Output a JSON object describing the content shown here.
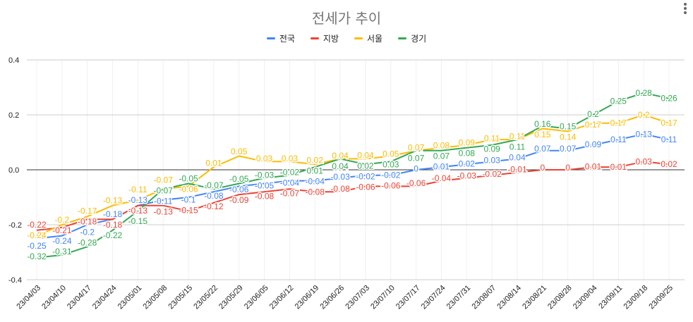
{
  "chart_data": {
    "type": "line",
    "title": "전세가 추이",
    "legend_position": "top",
    "grid": true,
    "ylim": [
      -0.4,
      0.4
    ],
    "yticks": [
      "0.4",
      "0.2",
      "0.0",
      "-0.2",
      "-0.4"
    ],
    "ytick_values": [
      0.4,
      0.2,
      0,
      -0.2,
      -0.4
    ],
    "categories": [
      "23/04/03",
      "23/04/10",
      "23/04/17",
      "23/04/24",
      "23/05/01",
      "23/05/08",
      "23/05/15",
      "23/05/22",
      "23/05/29",
      "23/06/05",
      "23/06/12",
      "23/06/19",
      "23/06/26",
      "23/07/03",
      "23/07/10",
      "23/07/17",
      "23/07/24",
      "23/07/31",
      "23/08/07",
      "23/08/14",
      "23/08/21",
      "23/08/28",
      "23/09/04",
      "23/09/11",
      "23/09/18",
      "23/09/25"
    ],
    "series": [
      {
        "name": "전국",
        "color": "#4285F4",
        "values": [
          -0.25,
          -0.24,
          -0.2,
          -0.18,
          -0.13,
          -0.11,
          -0.1,
          -0.08,
          -0.06,
          -0.05,
          -0.04,
          -0.04,
          -0.03,
          -0.02,
          -0.02,
          0,
          0.01,
          0.02,
          0.03,
          0.04,
          0.07,
          0.07,
          0.09,
          0.11,
          0.13,
          0.11
        ]
      },
      {
        "name": "지방",
        "color": "#EA4335",
        "values": [
          -0.22,
          -0.21,
          -0.18,
          -0.18,
          -0.13,
          -0.13,
          -0.15,
          -0.12,
          -0.09,
          -0.08,
          -0.07,
          -0.08,
          -0.08,
          -0.06,
          -0.06,
          -0.06,
          -0.04,
          -0.03,
          -0.02,
          -0.01,
          0,
          0,
          0.01,
          0.01,
          0.03,
          0.02
        ]
      },
      {
        "name": "서울",
        "color": "#FBBC04",
        "values": [
          -0.24,
          -0.2,
          -0.17,
          -0.13,
          -0.11,
          -0.07,
          -0.06,
          0.01,
          0.05,
          0.03,
          0.03,
          0.02,
          0.04,
          0.04,
          0.05,
          0.07,
          0.08,
          0.09,
          0.11,
          0.11,
          0.15,
          0.14,
          0.17,
          0.17,
          0.2,
          0.17
        ]
      },
      {
        "name": "경기",
        "color": "#34A853",
        "values": [
          -0.32,
          -0.31,
          -0.28,
          -0.22,
          -0.15,
          -0.07,
          -0.05,
          -0.07,
          -0.05,
          -0.03,
          -0.02,
          0.01,
          0.04,
          0.02,
          0.03,
          0.07,
          0.07,
          0.08,
          0.09,
          0.11,
          0.16,
          0.15,
          0.2,
          0.25,
          0.28,
          0.26
        ]
      }
    ]
  }
}
